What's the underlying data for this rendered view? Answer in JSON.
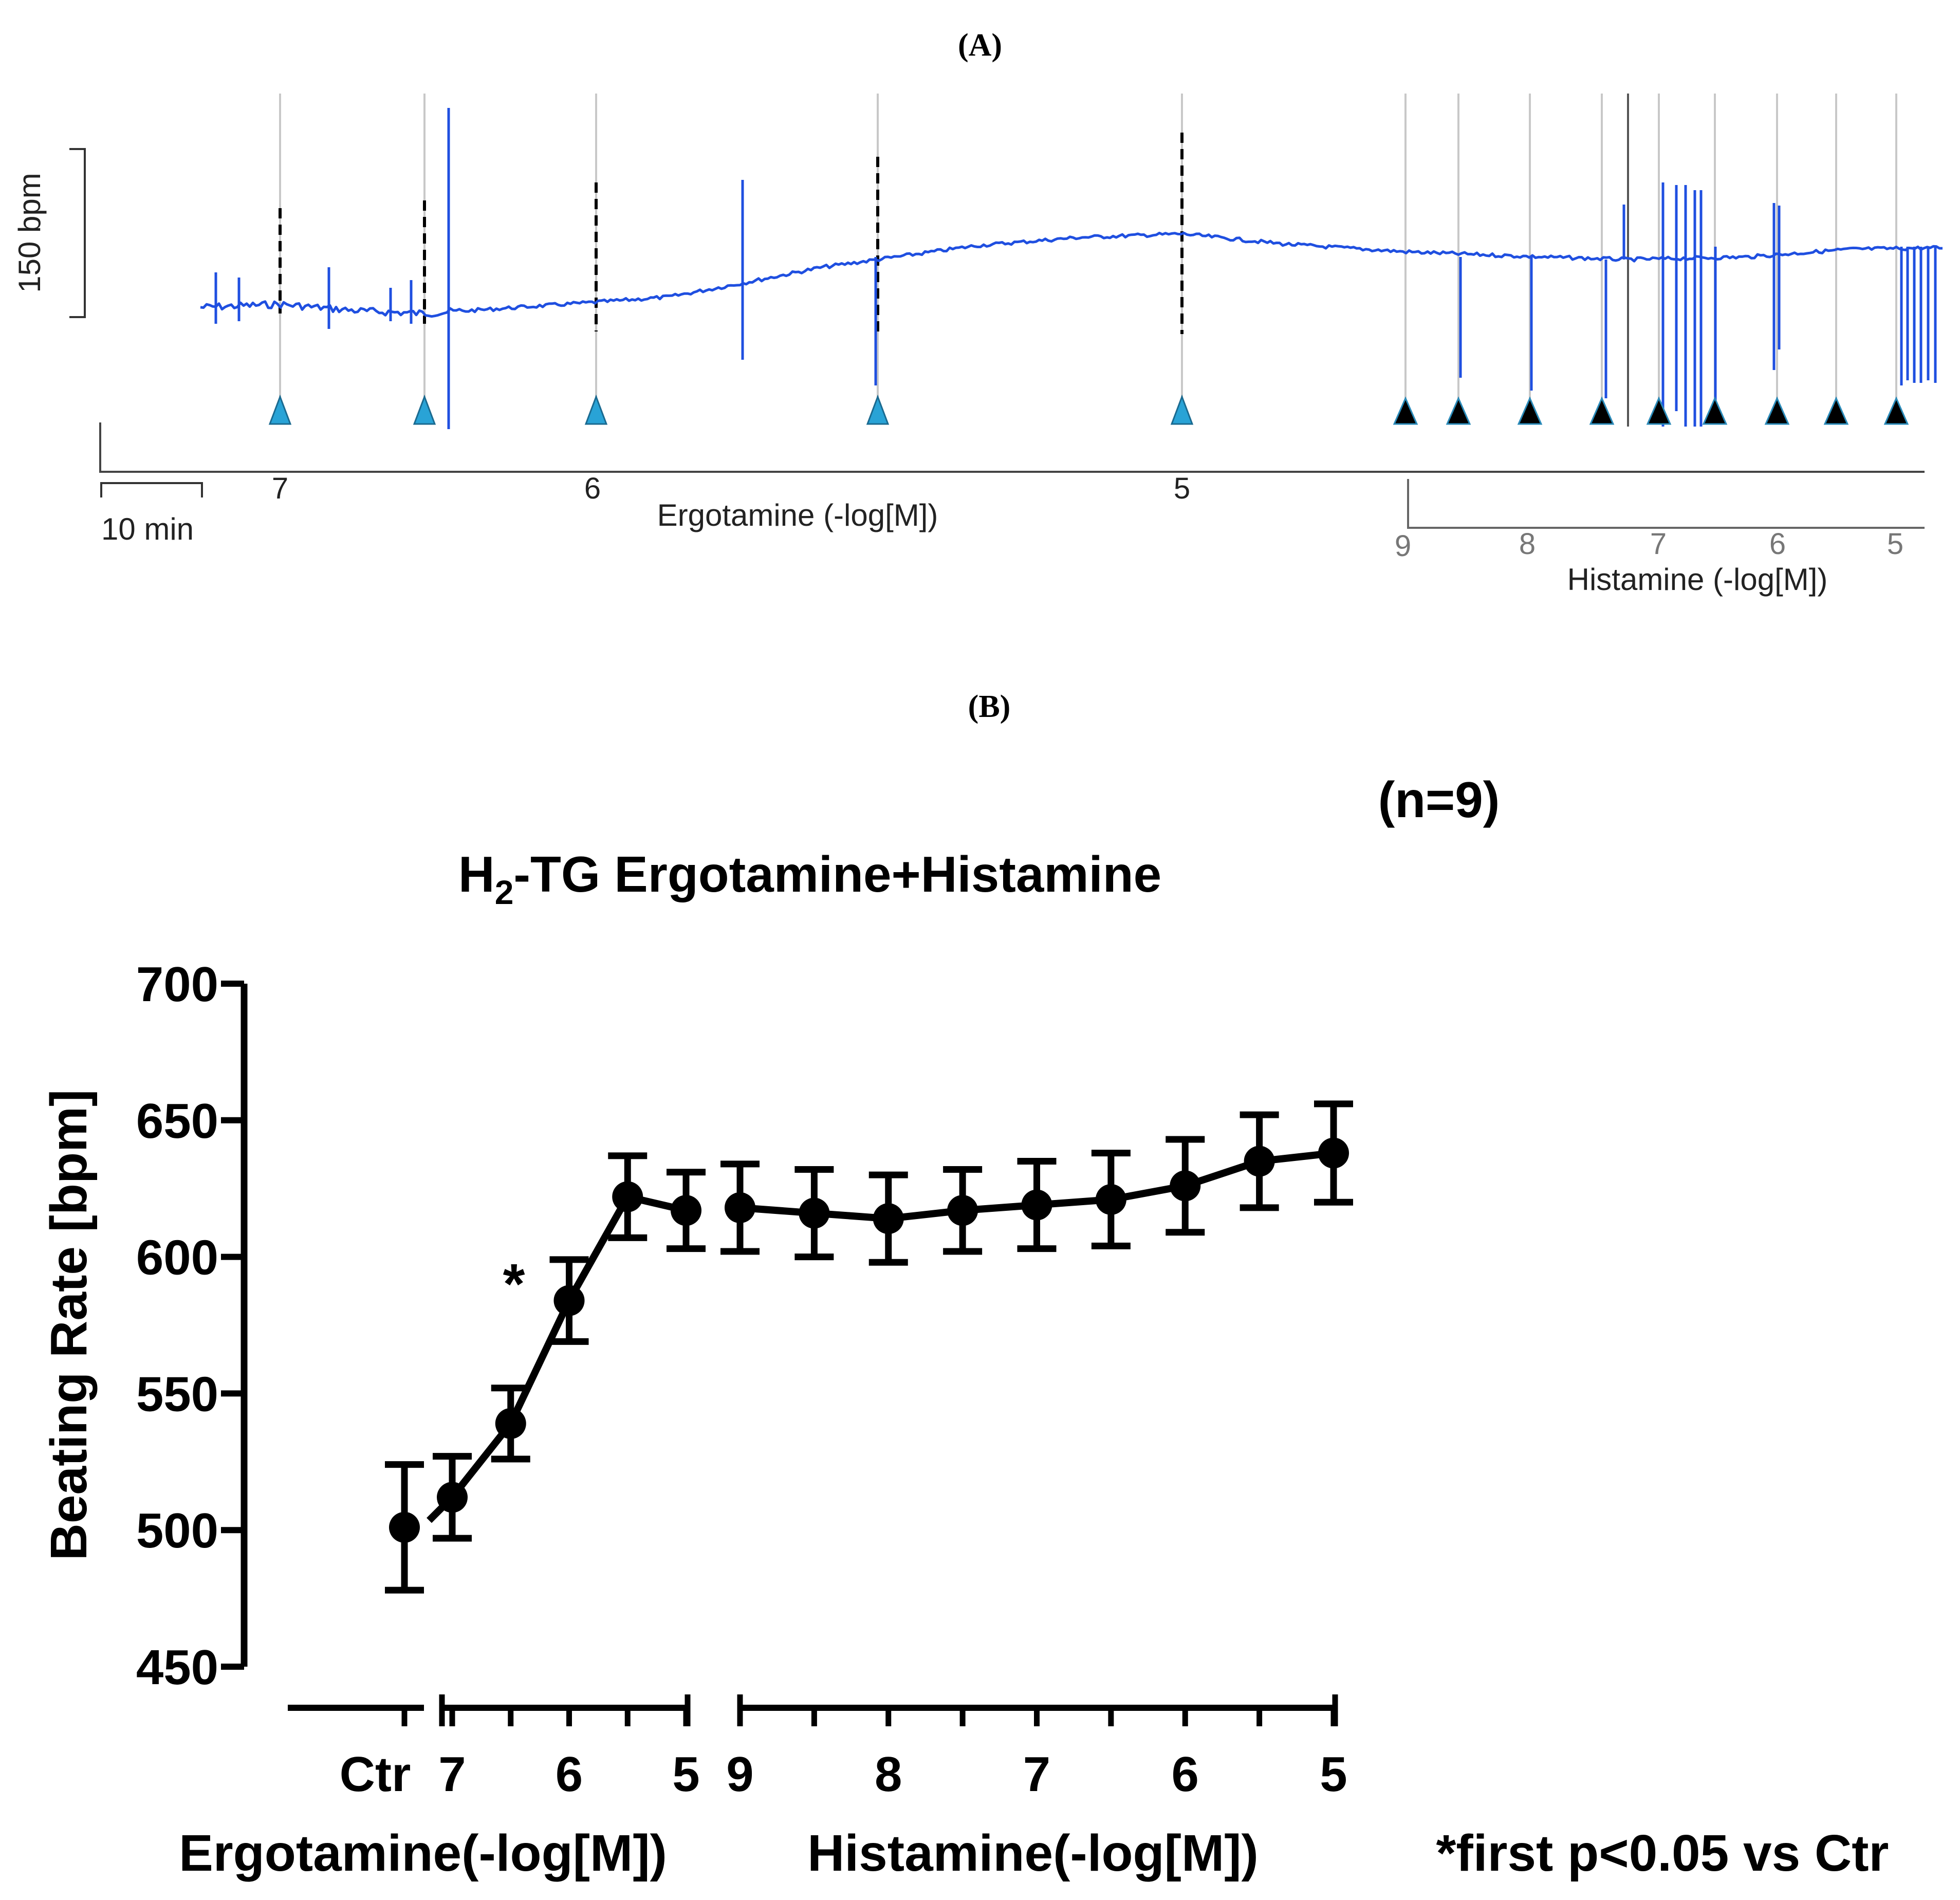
{
  "panel_a": {
    "label": "(A)",
    "scale_bar_y_label": "150 bpm",
    "scale_bar_x_label": "10 min",
    "ergotamine_axis_label": "Ergotamine (-log[M])",
    "ergotamine_ticks": [
      "7",
      "6",
      "5"
    ],
    "histamine_axis_label": "Histamine (-log[M])",
    "histamine_ticks": [
      "9",
      "8",
      "7",
      "6",
      "5"
    ],
    "colors": {
      "trace": "#1f4fe0",
      "ergotamine_marker": "#29a3d6",
      "histamine_marker": "#000000"
    }
  },
  "panel_b": {
    "label": "(B)",
    "n_label": "(n=9)",
    "title_prefix": "H",
    "title_sub": "2",
    "title_suffix": "-TG Ergotamine+Histamine",
    "significance_mark": "*",
    "footnote": "*first p<0.05 vs Ctr",
    "ergotamine_group_label": "Ergotamine(-log[M])",
    "histamine_group_label": "Histamine(-log[M])"
  },
  "chart_data": {
    "type": "line",
    "title": "H2-TG Ergotamine+Histamine",
    "ylabel": "Beating Rate [bpm]",
    "ylim": [
      450,
      700
    ],
    "yticks": [
      450,
      500,
      550,
      600,
      650,
      700
    ],
    "grid": false,
    "x_tick_labels": {
      "control": [
        "Ctr"
      ],
      "ergotamine": [
        "7",
        "6",
        "5"
      ],
      "histamine": [
        "9",
        "8",
        "7",
        "6",
        "5"
      ]
    },
    "control": {
      "x": "Ctr",
      "mean": 501,
      "sem": 23
    },
    "series": [
      {
        "x": [
          7.0,
          6.5,
          6.0,
          5.5,
          5.0
        ],
        "mean": [
          512,
          539,
          584,
          622,
          617
        ],
        "sem": [
          15,
          13,
          15,
          15,
          14
        ]
      },
      {
        "x": [
          9.0,
          8.5,
          8.0,
          7.5,
          7.0,
          6.5,
          6.0,
          5.5,
          5.0
        ],
        "mean": [
          618,
          616,
          614,
          617,
          619,
          621,
          626,
          635,
          638
        ],
        "sem": [
          16,
          16,
          16,
          15,
          16,
          17,
          17,
          17,
          18
        ]
      }
    ],
    "significance": {
      "series": 0,
      "x": 6.5,
      "mark": "*"
    }
  }
}
